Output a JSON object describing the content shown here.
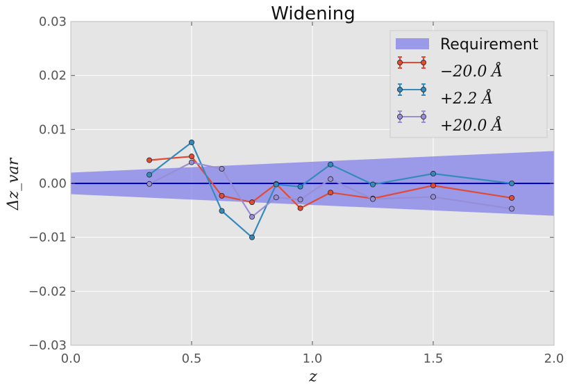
{
  "chart_data": {
    "type": "line",
    "title": "Widening",
    "xlabel": "z",
    "ylabel": "Δz_var",
    "xlim": [
      0.0,
      2.0
    ],
    "ylim": [
      -0.03,
      0.03
    ],
    "x_ticks": [
      "0.0",
      "0.5",
      "1.0",
      "1.5",
      "2.0"
    ],
    "y_ticks": [
      "−0.03",
      "−0.02",
      "−0.01",
      "0.00",
      "0.01",
      "0.02",
      "0.03"
    ],
    "grid": true,
    "legend_position": "top-right",
    "requirement_band": {
      "name": "Requirement",
      "color": "#7b7bea",
      "x": [
        0.0,
        2.0
      ],
      "upper": [
        0.002,
        0.006
      ],
      "lower": [
        -0.002,
        -0.006
      ]
    },
    "reference_line": {
      "y": 0.0,
      "color": "#0000cc"
    },
    "series": [
      {
        "name": "−20.0 Å",
        "color": "#e24a33",
        "x": [
          0.325,
          0.5,
          0.625,
          0.75,
          0.85,
          0.95,
          1.075,
          1.25,
          1.5,
          1.825
        ],
        "y": [
          0.0043,
          0.005,
          -0.0023,
          -0.0035,
          -0.0001,
          -0.0046,
          -0.0017,
          -0.0028,
          -0.0004,
          -0.0027
        ]
      },
      {
        "name": "+2.2 Å",
        "color": "#348abd",
        "x": [
          0.325,
          0.5,
          0.625,
          0.75,
          0.85,
          0.95,
          1.075,
          1.25,
          1.5,
          1.825
        ],
        "y": [
          0.0016,
          0.0076,
          -0.0051,
          -0.01,
          -0.0002,
          -0.0006,
          0.0035,
          -0.0002,
          0.0018,
          0.0
        ]
      },
      {
        "name": "+20.0 Å",
        "color": "#988ed5",
        "x": [
          0.325,
          0.5,
          0.625,
          0.75,
          0.85,
          0.95,
          1.075,
          1.25,
          1.5,
          1.825
        ],
        "y": [
          -0.0001,
          0.0039,
          0.0027,
          -0.0062,
          -0.0026,
          -0.003,
          0.0008,
          -0.0029,
          -0.0025,
          -0.0047
        ]
      }
    ]
  }
}
